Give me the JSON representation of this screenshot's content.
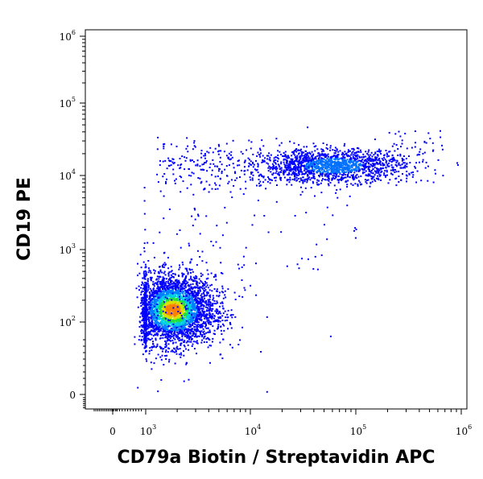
{
  "chart_data": {
    "type": "scatter",
    "title": "",
    "xlabel": "CD79a Biotin / Streptavidin APC",
    "ylabel": "CD19 PE",
    "x_scale": "biexponential",
    "y_scale": "biexponential",
    "xlim": [
      -300,
      1000000
    ],
    "ylim": [
      -300,
      1000000
    ],
    "x_ticks": [
      {
        "base": "0",
        "exp": ""
      },
      {
        "base": "10",
        "exp": "3"
      },
      {
        "base": "10",
        "exp": "4"
      },
      {
        "base": "10",
        "exp": "5"
      },
      {
        "base": "10",
        "exp": "6"
      }
    ],
    "y_ticks": [
      {
        "base": "0",
        "exp": ""
      },
      {
        "base": "10",
        "exp": "2"
      },
      {
        "base": "10",
        "exp": "3"
      },
      {
        "base": "10",
        "exp": "4"
      },
      {
        "base": "10",
        "exp": "5"
      },
      {
        "base": "10",
        "exp": "6"
      }
    ],
    "grid": false,
    "color_scale": "density (blue-low to red-high)",
    "populations": [
      {
        "x_center": 1800,
        "y_center": 150,
        "count": "high density",
        "x_range": [
          400,
          6000
        ],
        "y_range": [
          10,
          900
        ]
      },
      {
        "x_center": 60000,
        "y_center": 14000,
        "count": "medium density",
        "x_range": [
          1500,
          700000
        ],
        "y_range": [
          1500,
          60000
        ]
      }
    ]
  }
}
